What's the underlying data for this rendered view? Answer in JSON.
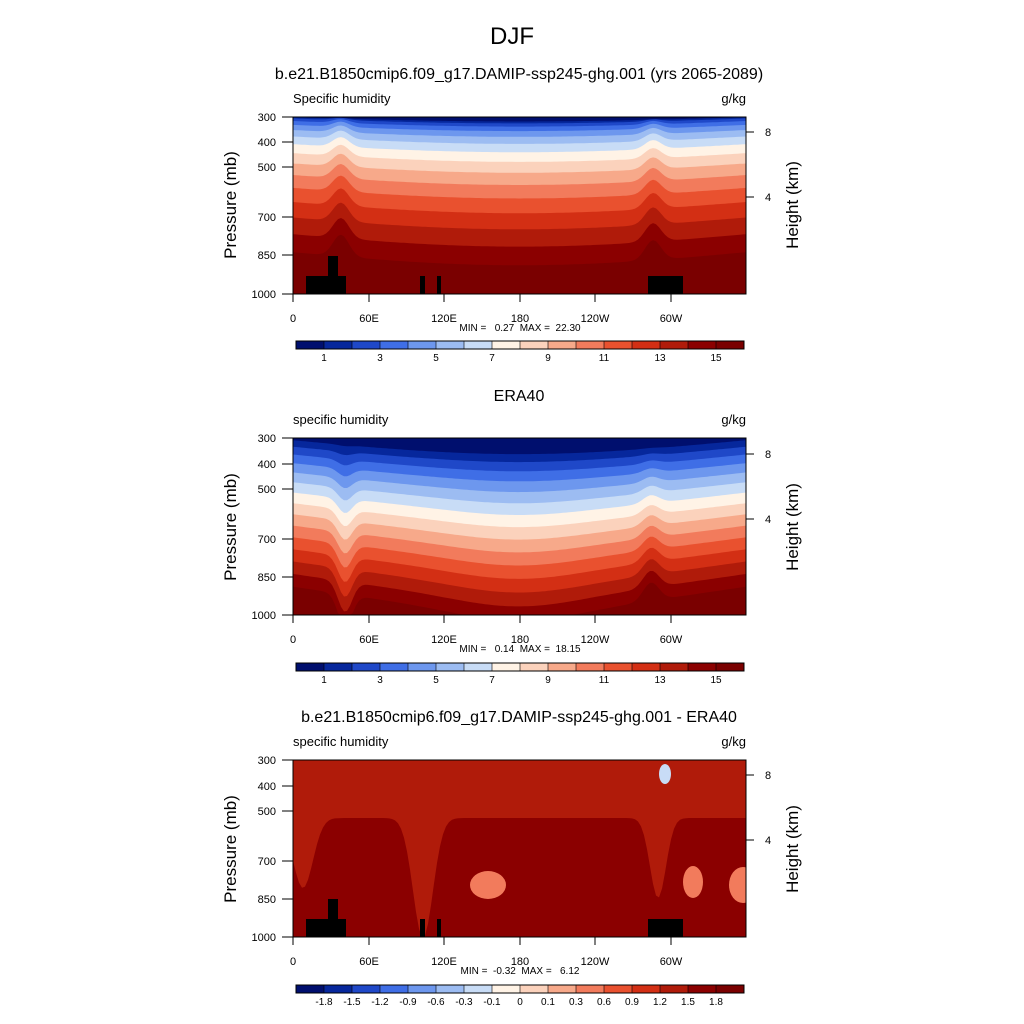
{
  "figure": {
    "title": "DJF"
  },
  "chart_data": [
    {
      "type": "heatmap",
      "panel": "model",
      "title": "b.e21.B1850cmip6.f09_g17.DAMIP-ssp245-ghg.001 (yrs 2065-2089)",
      "left_label": "Specific humidity",
      "units": "g/kg",
      "ylabel": "Pressure (mb)",
      "ylabel_right": "Height (km)",
      "x_ticks": [
        "0",
        "60E",
        "120E",
        "180",
        "120W",
        "60W"
      ],
      "y_ticks": [
        "300",
        "400",
        "500",
        "700",
        "850",
        "1000"
      ],
      "right_ticks": [
        "8",
        "4"
      ],
      "stats": "MIN =   0.27  MAX =  22.30",
      "colorbar_labels": [
        "1",
        "3",
        "5",
        "7",
        "9",
        "11",
        "13",
        "15"
      ],
      "min": 0.27,
      "max": 22.3
    },
    {
      "type": "heatmap",
      "panel": "obs",
      "title": "ERA40",
      "left_label": "specific humidity",
      "units": "g/kg",
      "ylabel": "Pressure (mb)",
      "ylabel_right": "Height (km)",
      "x_ticks": [
        "0",
        "60E",
        "120E",
        "180",
        "120W",
        "60W"
      ],
      "y_ticks": [
        "300",
        "400",
        "500",
        "700",
        "850",
        "1000"
      ],
      "right_ticks": [
        "8",
        "4"
      ],
      "stats": "MIN =   0.14  MAX =  18.15",
      "colorbar_labels": [
        "1",
        "3",
        "5",
        "7",
        "9",
        "11",
        "13",
        "15"
      ],
      "min": 0.14,
      "max": 18.15
    },
    {
      "type": "heatmap",
      "panel": "diff",
      "title": "b.e21.B1850cmip6.f09_g17.DAMIP-ssp245-ghg.001 - ERA40",
      "left_label": "specific humidity",
      "units": "g/kg",
      "ylabel": "Pressure (mb)",
      "ylabel_right": "Height (km)",
      "x_ticks": [
        "0",
        "60E",
        "120E",
        "180",
        "120W",
        "60W"
      ],
      "y_ticks": [
        "300",
        "400",
        "500",
        "700",
        "850",
        "1000"
      ],
      "right_ticks": [
        "8",
        "4"
      ],
      "stats": "MIN =  -0.32  MAX =   6.12",
      "colorbar_labels": [
        "-1.8",
        "-1.5",
        "-1.2",
        "-0.9",
        "-0.6",
        "-0.3",
        "-0.1",
        "0",
        "0.1",
        "0.3",
        "0.6",
        "0.9",
        "1.2",
        "1.5",
        "1.8"
      ],
      "min": -0.32,
      "max": 6.12
    }
  ],
  "colors": {
    "palette": [
      "#000f6e",
      "#06279c",
      "#1f48c8",
      "#3f6ee6",
      "#6d97ee",
      "#9cbcf2",
      "#c8dcf6",
      "#fff3e6",
      "#fbd2bc",
      "#f7a98a",
      "#f27b5c",
      "#e9512f",
      "#d32f14",
      "#b01b0a",
      "#8b0000",
      "#7a0000"
    ]
  }
}
